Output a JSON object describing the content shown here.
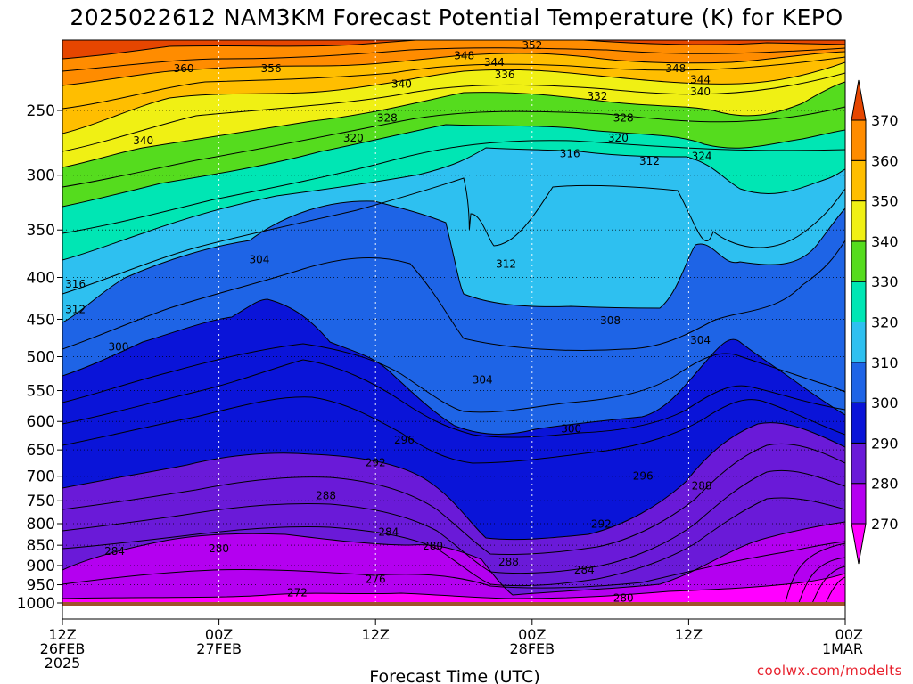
{
  "chart_data": {
    "type": "heatmap",
    "title": "2025022612 NAM3KM Forecast Potential Temperature (K) for KEPO",
    "xlabel": "Forecast Time (UTC)",
    "ylabel": "",
    "y_scale": "log",
    "y_reversed": true,
    "ylim": [
      1000,
      200
    ],
    "y_ticks": [
      250,
      300,
      350,
      400,
      450,
      500,
      550,
      600,
      650,
      700,
      750,
      800,
      850,
      900,
      950,
      1000
    ],
    "x_ticks": [
      {
        "line1": "12Z",
        "line2": "26FEB",
        "line3": "2025"
      },
      {
        "line1": "00Z",
        "line2": "27FEB",
        "line3": ""
      },
      {
        "line1": "12Z",
        "line2": "",
        "line3": ""
      },
      {
        "line1": "00Z",
        "line2": "28FEB",
        "line3": ""
      },
      {
        "line1": "12Z",
        "line2": "",
        "line3": ""
      },
      {
        "line1": "00Z",
        "line2": "1MAR",
        "line3": ""
      }
    ],
    "x_hours": [
      0,
      12,
      24,
      36,
      48,
      60
    ],
    "colorbar": {
      "units": "K",
      "levels": [
        270,
        280,
        290,
        300,
        310,
        320,
        330,
        340,
        350,
        360,
        370
      ],
      "label_levels": [
        "370",
        "360",
        "350",
        "340",
        "330",
        "320",
        "310",
        "300",
        "290",
        "280",
        "270"
      ],
      "bands": [
        {
          "from": 260,
          "to": 270,
          "color": "#ff00ff"
        },
        {
          "from": 270,
          "to": 280,
          "color": "#b400f0"
        },
        {
          "from": 280,
          "to": 290,
          "color": "#6a1ad8"
        },
        {
          "from": 290,
          "to": 300,
          "color": "#0a14d8"
        },
        {
          "from": 300,
          "to": 310,
          "color": "#1e64e6"
        },
        {
          "from": 310,
          "to": 320,
          "color": "#2ec0f0"
        },
        {
          "from": 320,
          "to": 330,
          "color": "#00e6b4"
        },
        {
          "from": 330,
          "to": 340,
          "color": "#55dc1e"
        },
        {
          "from": 340,
          "to": 350,
          "color": "#f0f014"
        },
        {
          "from": 350,
          "to": 360,
          "color": "#ffbe00"
        },
        {
          "from": 360,
          "to": 370,
          "color": "#ff8c00"
        },
        {
          "from": 370,
          "to": 380,
          "color": "#e64600"
        }
      ]
    },
    "ground_color": "#a0522d",
    "contour_labels": [
      {
        "text": "352",
        "hour": 36.0,
        "p": 208
      },
      {
        "text": "348",
        "hour": 30.8,
        "p": 214
      },
      {
        "text": "344",
        "hour": 33.1,
        "p": 218
      },
      {
        "text": "360",
        "hour": 9.3,
        "p": 222
      },
      {
        "text": "356",
        "hour": 16.0,
        "p": 222
      },
      {
        "text": "336",
        "hour": 33.9,
        "p": 226
      },
      {
        "text": "348",
        "hour": 47.0,
        "p": 222
      },
      {
        "text": "344",
        "hour": 48.9,
        "p": 229
      },
      {
        "text": "340",
        "hour": 26.0,
        "p": 232
      },
      {
        "text": "340",
        "hour": 48.9,
        "p": 237
      },
      {
        "text": "332",
        "hour": 41.0,
        "p": 240
      },
      {
        "text": "328",
        "hour": 43.0,
        "p": 255
      },
      {
        "text": "328",
        "hour": 24.9,
        "p": 255
      },
      {
        "text": "340",
        "hour": 6.2,
        "p": 272
      },
      {
        "text": "320",
        "hour": 22.3,
        "p": 270
      },
      {
        "text": "320",
        "hour": 42.6,
        "p": 270
      },
      {
        "text": "316",
        "hour": 38.9,
        "p": 282
      },
      {
        "text": "312",
        "hour": 45.0,
        "p": 288
      },
      {
        "text": "324",
        "hour": 49.0,
        "p": 284
      },
      {
        "text": "304",
        "hour": 15.1,
        "p": 380
      },
      {
        "text": "312",
        "hour": 34.0,
        "p": 385
      },
      {
        "text": "316",
        "hour": 1.0,
        "p": 407
      },
      {
        "text": "312",
        "hour": 1.0,
        "p": 437
      },
      {
        "text": "308",
        "hour": 42.0,
        "p": 451
      },
      {
        "text": "300",
        "hour": 4.3,
        "p": 486
      },
      {
        "text": "304",
        "hour": 48.9,
        "p": 477
      },
      {
        "text": "304",
        "hour": 32.2,
        "p": 533
      },
      {
        "text": "296",
        "hour": 26.2,
        "p": 631
      },
      {
        "text": "300",
        "hour": 39.0,
        "p": 612
      },
      {
        "text": "292",
        "hour": 24.0,
        "p": 673
      },
      {
        "text": "296",
        "hour": 44.5,
        "p": 699
      },
      {
        "text": "288",
        "hour": 20.2,
        "p": 738
      },
      {
        "text": "288",
        "hour": 49.0,
        "p": 718
      },
      {
        "text": "292",
        "hour": 41.3,
        "p": 800
      },
      {
        "text": "284",
        "hour": 25.0,
        "p": 818
      },
      {
        "text": "284",
        "hour": 4.0,
        "p": 864
      },
      {
        "text": "280",
        "hour": 12.0,
        "p": 857
      },
      {
        "text": "280",
        "hour": 28.4,
        "p": 851
      },
      {
        "text": "288",
        "hour": 34.2,
        "p": 890
      },
      {
        "text": "284",
        "hour": 40.0,
        "p": 910
      },
      {
        "text": "276",
        "hour": 24.0,
        "p": 935
      },
      {
        "text": "272",
        "hour": 18.0,
        "p": 970
      },
      {
        "text": "280",
        "hour": 43.0,
        "p": 985
      }
    ]
  },
  "credit": "coolwx.com/modelts",
  "credit_color": "#e8212d"
}
